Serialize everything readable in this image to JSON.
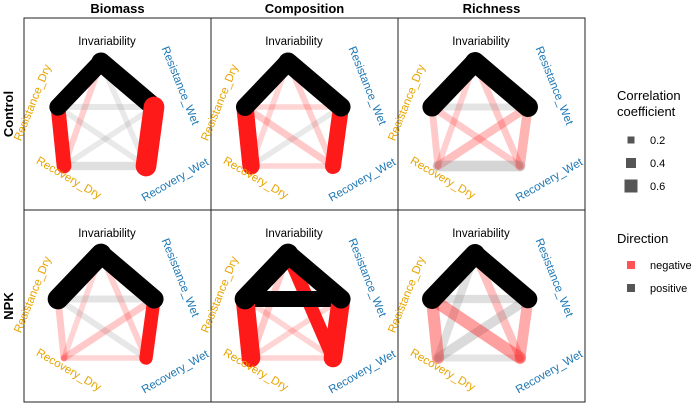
{
  "colors": {
    "negative": "#ff1a1a",
    "positive": "#000000",
    "label_black": "#000000",
    "label_orange": "#e8a400",
    "label_blue": "#1f78b4"
  },
  "nodes": [
    {
      "name": "Invariability",
      "color_key": "label_black"
    },
    {
      "name": "Resistance_Wet",
      "color_key": "label_blue"
    },
    {
      "name": "Recovery_Wet",
      "color_key": "label_blue"
    },
    {
      "name": "Recovery_Dry",
      "color_key": "label_orange"
    },
    {
      "name": "Resistance_Dry",
      "color_key": "label_orange"
    }
  ],
  "legend": {
    "size_title_line1": "Correlation",
    "size_title_line2": "coefficient",
    "size_items": [
      "0.2",
      "0.4",
      "0.6"
    ],
    "direction_title": "Direction",
    "direction_items": [
      "negative",
      "positive"
    ]
  },
  "chart_data": {
    "type": "network",
    "columns": [
      "Biomass",
      "Composition",
      "Richness"
    ],
    "rows": [
      "Control",
      "NPK"
    ],
    "edges_note": "r = correlation coefficient (width), sign = direction (color)",
    "panels": [
      {
        "row": "Control",
        "col": "Biomass",
        "edges": [
          {
            "from": "Invariability",
            "to": "Resistance_Wet",
            "r": 0.62
          },
          {
            "from": "Invariability",
            "to": "Resistance_Dry",
            "r": 0.55
          },
          {
            "from": "Resistance_Wet",
            "to": "Recovery_Wet",
            "r": -0.68
          },
          {
            "from": "Resistance_Dry",
            "to": "Recovery_Dry",
            "r": -0.45
          },
          {
            "from": "Invariability",
            "to": "Recovery_Dry",
            "r": -0.12
          },
          {
            "from": "Invariability",
            "to": "Recovery_Wet",
            "r": 0.1
          },
          {
            "from": "Resistance_Dry",
            "to": "Resistance_Wet",
            "r": 0.12
          },
          {
            "from": "Recovery_Dry",
            "to": "Recovery_Wet",
            "r": 0.2
          },
          {
            "from": "Resistance_Dry",
            "to": "Recovery_Wet",
            "r": 0.1
          },
          {
            "from": "Resistance_Wet",
            "to": "Recovery_Dry",
            "r": 0.1
          }
        ]
      },
      {
        "row": "Control",
        "col": "Composition",
        "edges": [
          {
            "from": "Invariability",
            "to": "Resistance_Wet",
            "r": 0.62
          },
          {
            "from": "Invariability",
            "to": "Resistance_Dry",
            "r": 0.58
          },
          {
            "from": "Resistance_Wet",
            "to": "Recovery_Wet",
            "r": -0.5
          },
          {
            "from": "Resistance_Dry",
            "to": "Recovery_Dry",
            "r": -0.55
          },
          {
            "from": "Invariability",
            "to": "Recovery_Dry",
            "r": -0.1
          },
          {
            "from": "Invariability",
            "to": "Recovery_Wet",
            "r": -0.12
          },
          {
            "from": "Resistance_Dry",
            "to": "Resistance_Wet",
            "r": -0.1
          },
          {
            "from": "Recovery_Dry",
            "to": "Recovery_Wet",
            "r": -0.1
          },
          {
            "from": "Resistance_Dry",
            "to": "Recovery_Wet",
            "r": -0.15
          },
          {
            "from": "Resistance_Wet",
            "to": "Recovery_Dry",
            "r": 0.1
          }
        ]
      },
      {
        "row": "Control",
        "col": "Richness",
        "edges": [
          {
            "from": "Invariability",
            "to": "Resistance_Wet",
            "r": 0.65
          },
          {
            "from": "Invariability",
            "to": "Resistance_Dry",
            "r": 0.62
          },
          {
            "from": "Resistance_Wet",
            "to": "Recovery_Wet",
            "r": -0.25
          },
          {
            "from": "Resistance_Dry",
            "to": "Recovery_Dry",
            "r": -0.15
          },
          {
            "from": "Invariability",
            "to": "Recovery_Dry",
            "r": -0.12
          },
          {
            "from": "Invariability",
            "to": "Recovery_Wet",
            "r": -0.15
          },
          {
            "from": "Resistance_Dry",
            "to": "Resistance_Wet",
            "r": 0.15
          },
          {
            "from": "Recovery_Dry",
            "to": "Recovery_Wet",
            "r": 0.3
          },
          {
            "from": "Resistance_Dry",
            "to": "Recovery_Wet",
            "r": -0.15
          },
          {
            "from": "Resistance_Wet",
            "to": "Recovery_Dry",
            "r": -0.2
          }
        ]
      },
      {
        "row": "NPK",
        "col": "Biomass",
        "edges": [
          {
            "from": "Invariability",
            "to": "Resistance_Wet",
            "r": 0.62
          },
          {
            "from": "Invariability",
            "to": "Resistance_Dry",
            "r": 0.68
          },
          {
            "from": "Resistance_Wet",
            "to": "Recovery_Wet",
            "r": -0.4
          },
          {
            "from": "Resistance_Dry",
            "to": "Recovery_Dry",
            "r": -0.15
          },
          {
            "from": "Invariability",
            "to": "Recovery_Dry",
            "r": -0.1
          },
          {
            "from": "Invariability",
            "to": "Recovery_Wet",
            "r": -0.12
          },
          {
            "from": "Resistance_Dry",
            "to": "Resistance_Wet",
            "r": 0.15
          },
          {
            "from": "Recovery_Dry",
            "to": "Recovery_Wet",
            "r": -0.1
          },
          {
            "from": "Resistance_Dry",
            "to": "Recovery_Wet",
            "r": 0.12
          },
          {
            "from": "Resistance_Wet",
            "to": "Recovery_Dry",
            "r": -0.15
          }
        ]
      },
      {
        "row": "NPK",
        "col": "Composition",
        "edges": [
          {
            "from": "Invariability",
            "to": "Resistance_Wet",
            "r": 0.62
          },
          {
            "from": "Invariability",
            "to": "Resistance_Dry",
            "r": 0.68
          },
          {
            "from": "Resistance_Dry",
            "to": "Resistance_Wet",
            "r": 0.5
          },
          {
            "from": "Resistance_Wet",
            "to": "Recovery_Wet",
            "r": -0.6
          },
          {
            "from": "Invariability",
            "to": "Recovery_Wet",
            "r": -0.4
          },
          {
            "from": "Resistance_Dry",
            "to": "Recovery_Dry",
            "r": -0.6
          },
          {
            "from": "Invariability",
            "to": "Recovery_Dry",
            "r": -0.15
          },
          {
            "from": "Recovery_Dry",
            "to": "Recovery_Wet",
            "r": -0.1
          },
          {
            "from": "Resistance_Dry",
            "to": "Recovery_Wet",
            "r": -0.1
          },
          {
            "from": "Resistance_Wet",
            "to": "Recovery_Dry",
            "r": -0.1
          }
        ]
      },
      {
        "row": "NPK",
        "col": "Richness",
        "edges": [
          {
            "from": "Invariability",
            "to": "Resistance_Wet",
            "r": 0.6
          },
          {
            "from": "Invariability",
            "to": "Resistance_Dry",
            "r": 0.65
          },
          {
            "from": "Resistance_Wet",
            "to": "Recovery_Wet",
            "r": -0.3
          },
          {
            "from": "Resistance_Dry",
            "to": "Recovery_Dry",
            "r": -0.35
          },
          {
            "from": "Invariability",
            "to": "Recovery_Dry",
            "r": 0.2
          },
          {
            "from": "Invariability",
            "to": "Recovery_Wet",
            "r": -0.2
          },
          {
            "from": "Resistance_Dry",
            "to": "Resistance_Wet",
            "r": 0.2
          },
          {
            "from": "Recovery_Dry",
            "to": "Recovery_Wet",
            "r": 0.15
          },
          {
            "from": "Resistance_Dry",
            "to": "Recovery_Wet",
            "r": -0.35
          },
          {
            "from": "Resistance_Wet",
            "to": "Recovery_Dry",
            "r": 0.25
          }
        ]
      }
    ]
  }
}
